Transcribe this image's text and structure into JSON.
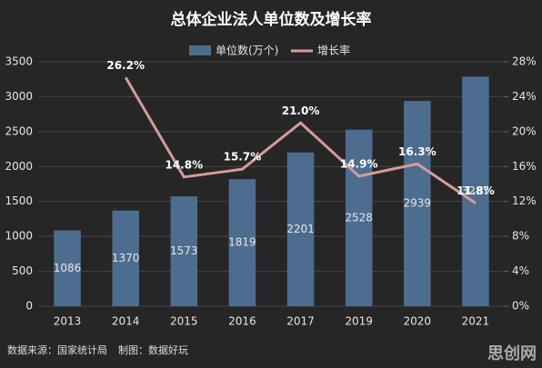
{
  "chart_data": {
    "type": "bar_line",
    "title": "总体企业法人单位数及增长率",
    "categories": [
      "2013",
      "2014",
      "2015",
      "2016",
      "2017",
      "2019",
      "2020",
      "2021"
    ],
    "series": [
      {
        "name": "单位数(万个)",
        "color": "#4d6d8f",
        "values": [
          1086,
          1370,
          1573,
          1819,
          2201,
          2528,
          2939,
          3287
        ]
      },
      {
        "name": "增长率",
        "color": "#d49c98",
        "axis": "y2",
        "values": [
          null,
          26.2,
          14.8,
          15.7,
          21.0,
          14.9,
          16.3,
          11.8
        ],
        "value_labels": [
          null,
          "26.2%",
          "14.8%",
          "15.7%",
          "21.0%",
          "14.9%",
          "16.3%",
          "11.8%"
        ]
      }
    ],
    "ylim": [
      0,
      3500
    ],
    "yticks": [
      0,
      500,
      1000,
      1500,
      2000,
      2500,
      3000,
      3500
    ],
    "y2lim": [
      0,
      28
    ],
    "y2ticks": [
      {
        "value": 0,
        "label": "0%"
      },
      {
        "value": 4,
        "label": "4%"
      },
      {
        "value": 8,
        "label": "8%"
      },
      {
        "value": 12,
        "label": "12%"
      },
      {
        "value": 16,
        "label": "16%"
      },
      {
        "value": 20,
        "label": "20%"
      },
      {
        "value": 24,
        "label": "24%"
      },
      {
        "value": 28,
        "label": "28%"
      }
    ],
    "grid": true,
    "source": "数据来源：国家统计局",
    "credit": "制图：数据好玩",
    "watermark": "思创网"
  }
}
